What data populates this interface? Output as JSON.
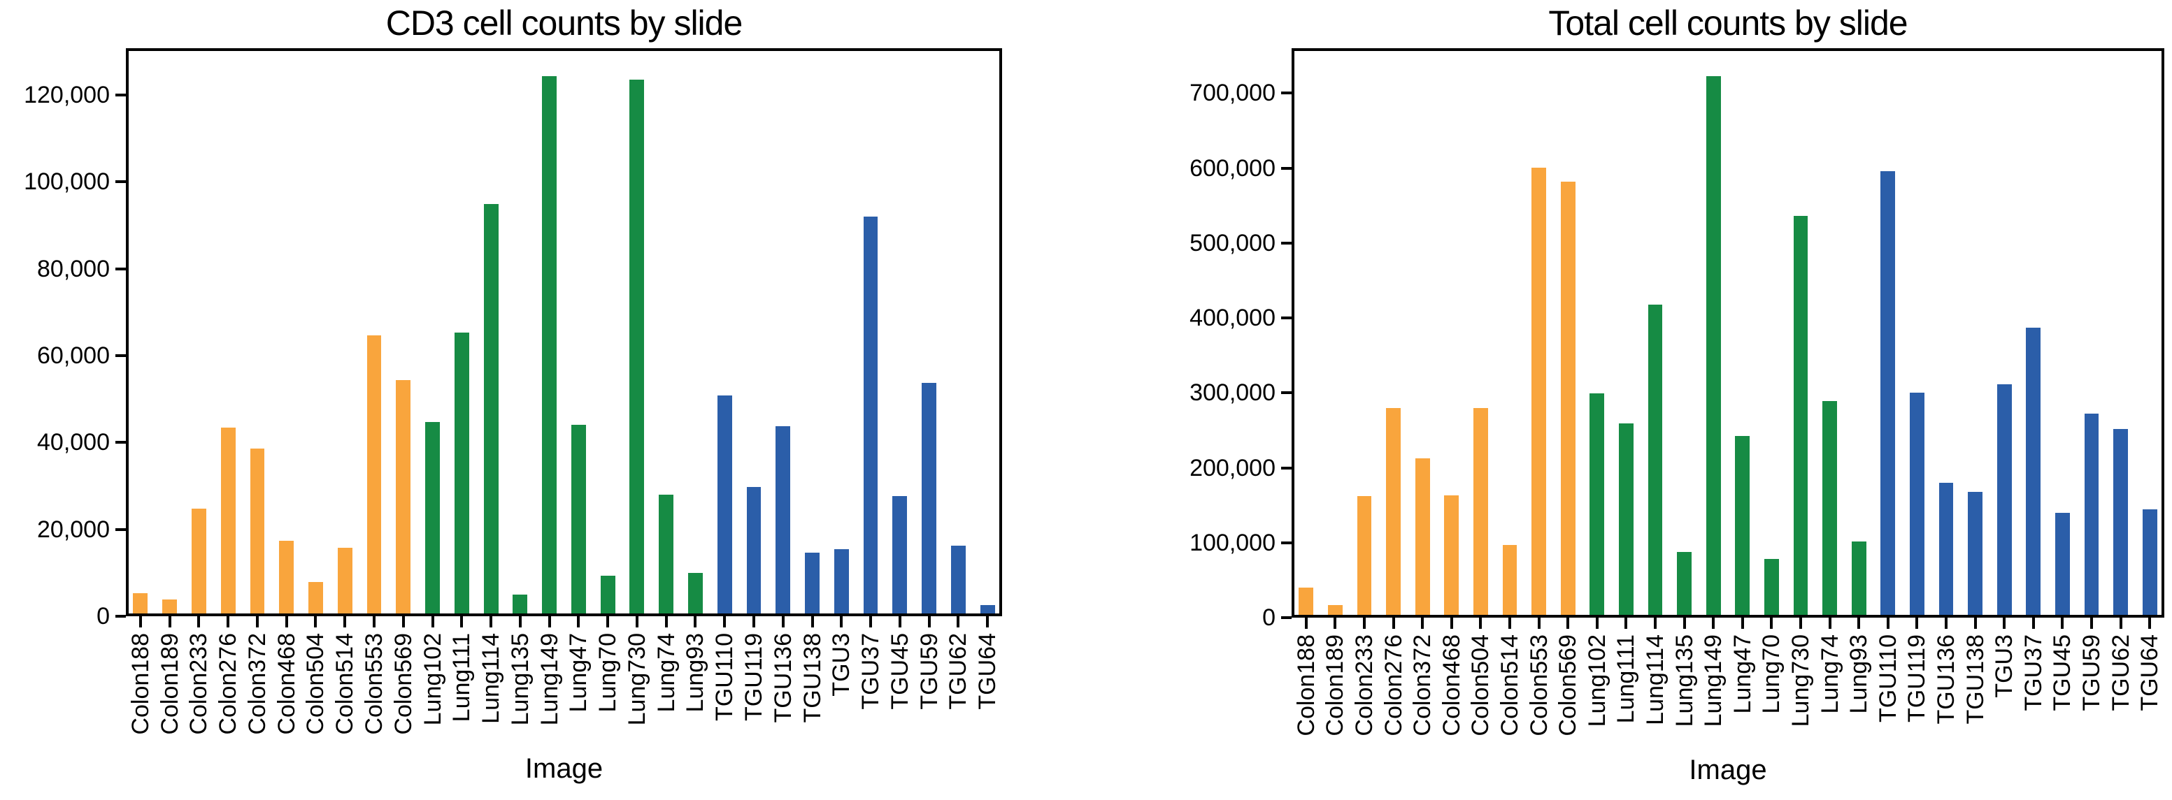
{
  "figure": {
    "background": "#ffffff"
  },
  "palette": {
    "axis": "#000000",
    "text": "#000000",
    "groups": {
      "Colon": "#F9A53D",
      "Lung": "#168B44",
      "TGU": "#2B5EA9"
    }
  },
  "chart_data": [
    {
      "type": "bar",
      "title": "CD3 cell counts by slide",
      "xlabel": "Image",
      "ylabel": "",
      "grid": false,
      "legend": "none",
      "categories": [
        "Colon188",
        "Colon189",
        "Colon233",
        "Colon276",
        "Colon372",
        "Colon468",
        "Colon504",
        "Colon514",
        "Colon553",
        "Colon569",
        "Lung102",
        "Lung111",
        "Lung114",
        "Lung135",
        "Lung149",
        "Lung47",
        "Lung70",
        "Lung730",
        "Lung74",
        "Lung93",
        "TGU110",
        "TGU119",
        "TGU136",
        "TGU138",
        "TGU3",
        "TGU37",
        "TGU45",
        "TGU59",
        "TGU62",
        "TGU64"
      ],
      "values": [
        5300,
        3900,
        24800,
        43400,
        38600,
        17400,
        7900,
        15800,
        64700,
        54400,
        44700,
        65300,
        94900,
        5000,
        124300,
        44100,
        9300,
        123600,
        28000,
        10000,
        50900,
        29700,
        43700,
        14700,
        15400,
        92100,
        27700,
        53700,
        16200,
        2600
      ],
      "ylim": [
        0,
        130800
      ],
      "yticks": [
        {
          "value": 0,
          "label": "0"
        },
        {
          "value": 20000,
          "label": "20,000"
        },
        {
          "value": 40000,
          "label": "40,000"
        },
        {
          "value": 60000,
          "label": "60,000"
        },
        {
          "value": 80000,
          "label": "80,000"
        },
        {
          "value": 100000,
          "label": "100,000"
        },
        {
          "value": 120000,
          "label": "120,000"
        }
      ]
    },
    {
      "type": "bar",
      "title": "Total cell counts by slide",
      "xlabel": "Image",
      "ylabel": "",
      "grid": false,
      "legend": "none",
      "categories": [
        "Colon188",
        "Colon189",
        "Colon233",
        "Colon276",
        "Colon372",
        "Colon468",
        "Colon504",
        "Colon514",
        "Colon553",
        "Colon569",
        "Lung102",
        "Lung111",
        "Lung114",
        "Lung135",
        "Lung149",
        "Lung47",
        "Lung70",
        "Lung730",
        "Lung74",
        "Lung93",
        "TGU110",
        "TGU119",
        "TGU136",
        "TGU138",
        "TGU3",
        "TGU37",
        "TGU45",
        "TGU59",
        "TGU62",
        "TGU64"
      ],
      "values": [
        40000,
        17000,
        162000,
        280000,
        213000,
        163000,
        280000,
        97000,
        601000,
        582000,
        299000,
        259000,
        418000,
        88000,
        723000,
        242000,
        78000,
        536000,
        289000,
        102000,
        596000,
        300000,
        180000,
        168000,
        311000,
        387000,
        140000,
        272000,
        252000,
        145000
      ],
      "ylim": [
        0,
        760000
      ],
      "yticks": [
        {
          "value": 0,
          "label": "0"
        },
        {
          "value": 100000,
          "label": "100,000"
        },
        {
          "value": 200000,
          "label": "200,000"
        },
        {
          "value": 300000,
          "label": "300,000"
        },
        {
          "value": 400000,
          "label": "400,000"
        },
        {
          "value": 500000,
          "label": "500,000"
        },
        {
          "value": 600000,
          "label": "600,000"
        },
        {
          "value": 700000,
          "label": "700,000"
        }
      ]
    }
  ]
}
